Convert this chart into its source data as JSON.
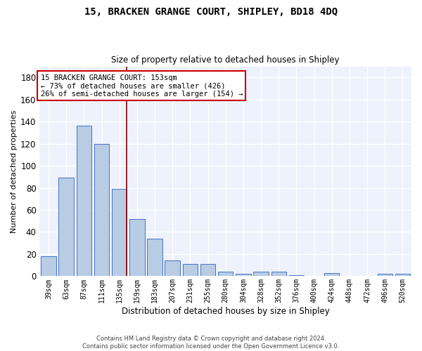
{
  "title": "15, BRACKEN GRANGE COURT, SHIPLEY, BD18 4DQ",
  "subtitle": "Size of property relative to detached houses in Shipley",
  "xlabel": "Distribution of detached houses by size in Shipley",
  "ylabel": "Number of detached properties",
  "categories": [
    "39sqm",
    "63sqm",
    "87sqm",
    "111sqm",
    "135sqm",
    "159sqm",
    "183sqm",
    "207sqm",
    "231sqm",
    "255sqm",
    "280sqm",
    "304sqm",
    "328sqm",
    "352sqm",
    "376sqm",
    "400sqm",
    "424sqm",
    "448sqm",
    "472sqm",
    "496sqm",
    "520sqm"
  ],
  "values": [
    18,
    89,
    136,
    120,
    79,
    52,
    34,
    14,
    11,
    11,
    4,
    2,
    4,
    4,
    1,
    0,
    3,
    0,
    0,
    2,
    2
  ],
  "bar_color": "#b8cce4",
  "bar_edge_color": "#4472c4",
  "background_color": "#eef2fc",
  "grid_color": "#ffffff",
  "vline_x": 4,
  "vline_color": "#8b0000",
  "ylim": [
    0,
    190
  ],
  "yticks": [
    0,
    20,
    40,
    60,
    80,
    100,
    120,
    140,
    160,
    180
  ],
  "annotation_line1": "15 BRACKEN GRANGE COURT: 153sqm",
  "annotation_line2": "← 73% of detached houses are smaller (426)",
  "annotation_line3": "26% of semi-detached houses are larger (154) →",
  "footer_line1": "Contains HM Land Registry data © Crown copyright and database right 2024.",
  "footer_line2": "Contains public sector information licensed under the Open Government Licence v3.0."
}
